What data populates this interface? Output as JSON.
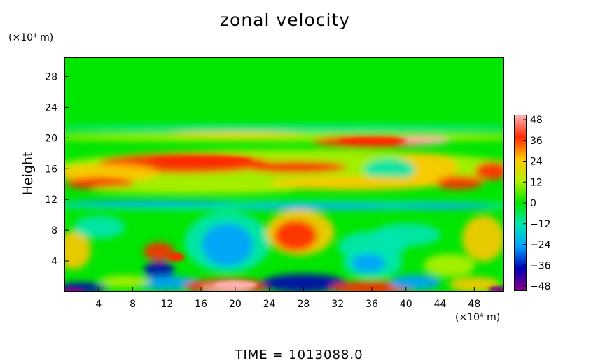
{
  "chart_data": {
    "type": "heatmap",
    "title": "zonal velocity",
    "ylabel": "Height",
    "y_unit": "(×10⁴ m)",
    "x_unit": "(×10⁴ m)",
    "x_ticks": [
      "4",
      "8",
      "12",
      "16",
      "20",
      "24",
      "28",
      "32",
      "36",
      "40",
      "44",
      "48"
    ],
    "y_ticks": [
      "4",
      "8",
      "12",
      "16",
      "20",
      "24",
      "28"
    ],
    "xlim": [
      0,
      51.5
    ],
    "ylim": [
      0,
      30.5
    ],
    "colorbar": {
      "ticks": [
        "48",
        "36",
        "24",
        "12",
        "0",
        "−12",
        "−24",
        "−36",
        "−48"
      ],
      "range": [
        -48,
        48
      ]
    },
    "time_label": "TIME  =  1013088.0",
    "colors": {
      "neg_max": "#8b008b",
      "neg_strong": "#0000b4",
      "neg_mid": "#00a0ff",
      "neg_weak": "#00e6b4",
      "zero": "#00e600",
      "pos_weak": "#b4f000",
      "pos_mid": "#ffc800",
      "pos_strong": "#ff2800",
      "pos_max": "#ffb4b4"
    }
  }
}
